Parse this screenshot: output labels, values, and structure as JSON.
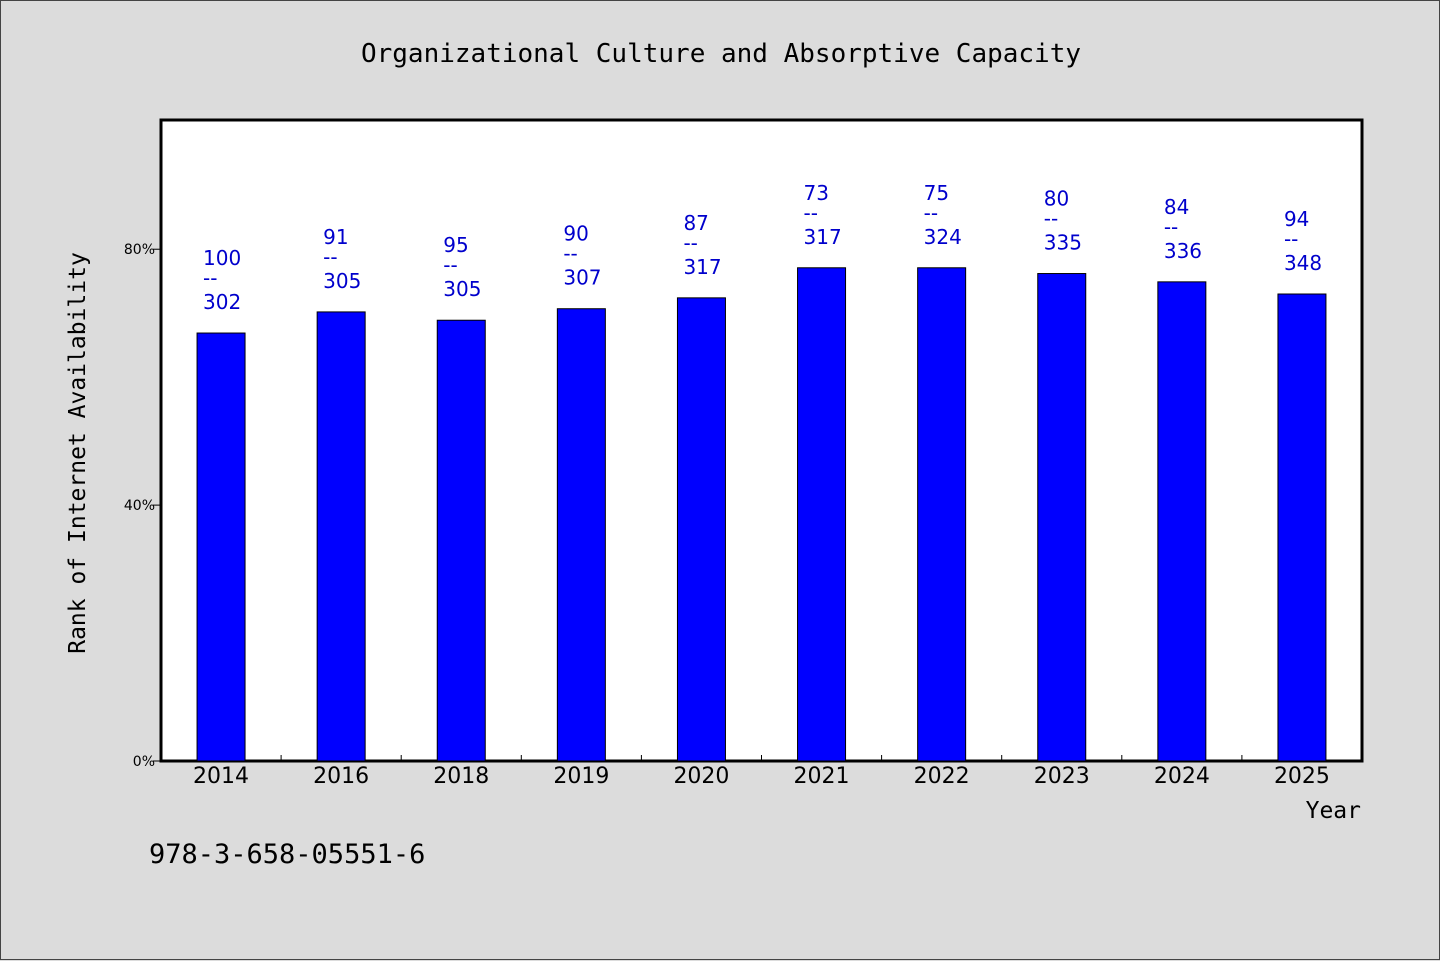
{
  "chart_data": {
    "type": "bar",
    "title": "Organizational Culture and Absorptive Capacity",
    "xlabel": "Year",
    "ylabel": "Rank of Internet Availability",
    "categories": [
      "2014",
      "2016",
      "2018",
      "2019",
      "2020",
      "2021",
      "2022",
      "2023",
      "2024",
      "2025"
    ],
    "values": [
      0.669,
      0.702,
      0.689,
      0.707,
      0.724,
      0.771,
      0.771,
      0.762,
      0.749,
      0.73
    ],
    "ylim": [
      0,
      1.0
    ],
    "yticks": [
      0,
      0.4,
      0.8
    ],
    "ytick_labels": [
      "0%",
      "40%",
      "80%"
    ],
    "data_labels": [
      {
        "top": "100",
        "sep": "--",
        "bottom": "302"
      },
      {
        "top": "91",
        "sep": "--",
        "bottom": "305"
      },
      {
        "top": "95",
        "sep": "--",
        "bottom": "305"
      },
      {
        "top": "90",
        "sep": "--",
        "bottom": "307"
      },
      {
        "top": "87",
        "sep": "--",
        "bottom": "317"
      },
      {
        "top": "73",
        "sep": "--",
        "bottom": "317"
      },
      {
        "top": "75",
        "sep": "--",
        "bottom": "324"
      },
      {
        "top": "80",
        "sep": "--",
        "bottom": "335"
      },
      {
        "top": "84",
        "sep": "--",
        "bottom": "336"
      },
      {
        "top": "94",
        "sep": "--",
        "bottom": "348"
      }
    ],
    "grid": false,
    "colors": {
      "bar": "#0000ff",
      "label": "#0000cc",
      "plot_bg": "#ffffff",
      "page_bg": "#dcdcdc"
    }
  },
  "footer": {
    "isbn": "978-3-658-05551-6"
  }
}
